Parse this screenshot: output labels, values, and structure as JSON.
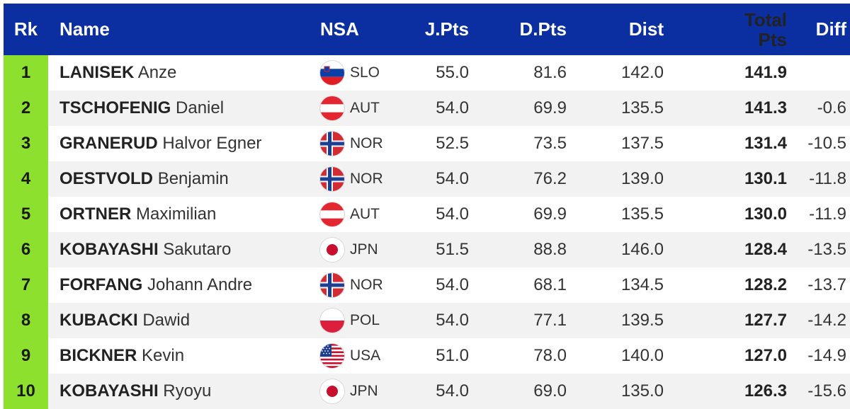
{
  "header": {
    "rank": "Rk",
    "name": "Name",
    "nsa": "NSA",
    "jpts": "J.Pts",
    "dpts": "D.Pts",
    "dist": "Dist",
    "total_line1": "Total",
    "total_line2": "Pts",
    "diff": "Diff"
  },
  "colors": {
    "header_bg": "#0b2fa0",
    "rank_bg": "#8ee02e"
  },
  "rows": [
    {
      "rank": "1",
      "last": "LANISEK",
      "first": "Anze",
      "flag": "slovenia-flag-icon",
      "nsa": "SLO",
      "jpts": "55.0",
      "dpts": "81.6",
      "dist": "142.0",
      "total": "141.9",
      "diff": ""
    },
    {
      "rank": "2",
      "last": "TSCHOFENIG",
      "first": "Daniel",
      "flag": "austria-flag-icon",
      "nsa": "AUT",
      "jpts": "54.0",
      "dpts": "69.9",
      "dist": "135.5",
      "total": "141.3",
      "diff": "-0.6"
    },
    {
      "rank": "3",
      "last": "GRANERUD",
      "first": "Halvor Egner",
      "flag": "norway-flag-icon",
      "nsa": "NOR",
      "jpts": "52.5",
      "dpts": "73.5",
      "dist": "137.5",
      "total": "131.4",
      "diff": "-10.5"
    },
    {
      "rank": "4",
      "last": "OESTVOLD",
      "first": "Benjamin",
      "flag": "norway-flag-icon",
      "nsa": "NOR",
      "jpts": "54.0",
      "dpts": "76.2",
      "dist": "139.0",
      "total": "130.1",
      "diff": "-11.8"
    },
    {
      "rank": "5",
      "last": "ORTNER",
      "first": "Maximilian",
      "flag": "austria-flag-icon",
      "nsa": "AUT",
      "jpts": "54.0",
      "dpts": "69.9",
      "dist": "135.5",
      "total": "130.0",
      "diff": "-11.9"
    },
    {
      "rank": "6",
      "last": "KOBAYASHI",
      "first": "Sakutaro",
      "flag": "japan-flag-icon",
      "nsa": "JPN",
      "jpts": "51.5",
      "dpts": "88.8",
      "dist": "146.0",
      "total": "128.4",
      "diff": "-13.5"
    },
    {
      "rank": "7",
      "last": "FORFANG",
      "first": "Johann Andre",
      "flag": "norway-flag-icon",
      "nsa": "NOR",
      "jpts": "54.0",
      "dpts": "68.1",
      "dist": "134.5",
      "total": "128.2",
      "diff": "-13.7"
    },
    {
      "rank": "8",
      "last": "KUBACKI",
      "first": "Dawid",
      "flag": "poland-flag-icon",
      "nsa": "POL",
      "jpts": "54.0",
      "dpts": "77.1",
      "dist": "139.5",
      "total": "127.7",
      "diff": "-14.2"
    },
    {
      "rank": "9",
      "last": "BICKNER",
      "first": "Kevin",
      "flag": "usa-flag-icon",
      "nsa": "USA",
      "jpts": "51.0",
      "dpts": "78.0",
      "dist": "140.0",
      "total": "127.0",
      "diff": "-14.9"
    },
    {
      "rank": "10",
      "last": "KOBAYASHI",
      "first": "Ryoyu",
      "flag": "japan-flag-icon",
      "nsa": "JPN",
      "jpts": "54.0",
      "dpts": "69.0",
      "dist": "135.0",
      "total": "126.3",
      "diff": "-15.6"
    }
  ]
}
